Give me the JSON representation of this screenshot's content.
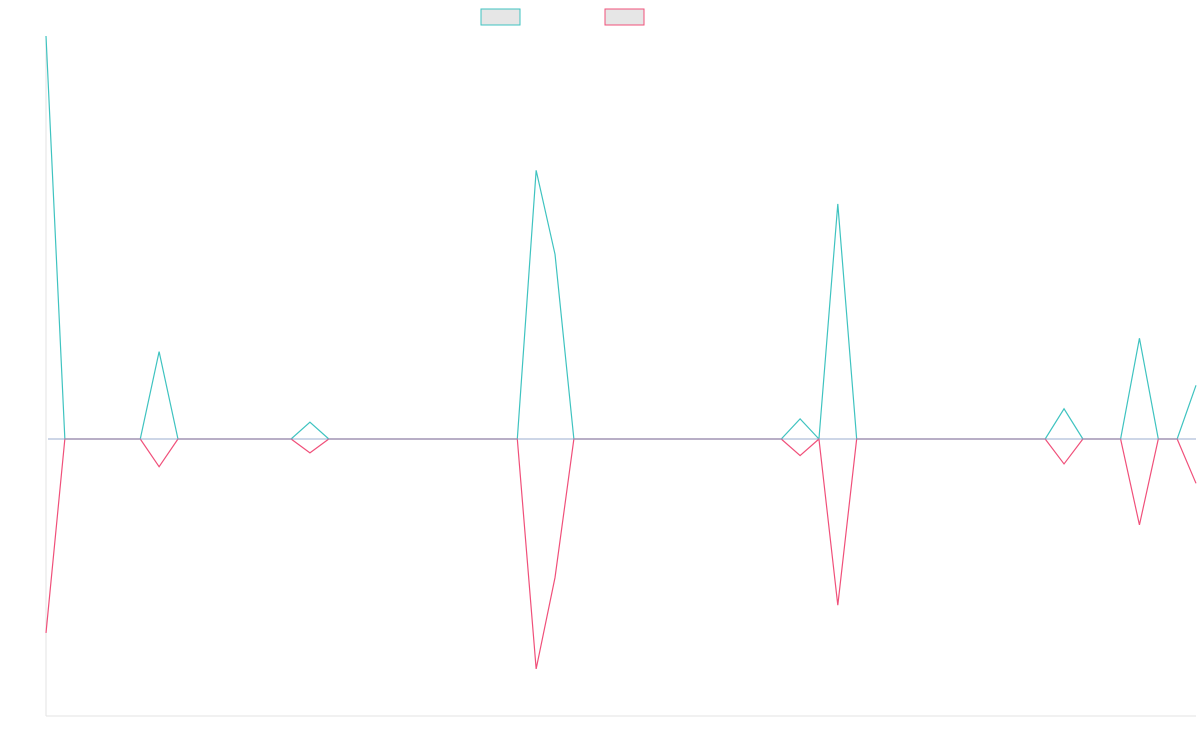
{
  "chart_data": {
    "type": "line",
    "title": "",
    "xlabel": "",
    "ylabel": "",
    "legend_position": "top-center",
    "grid": false,
    "colors": {
      "series_a": "#3fc3c0",
      "series_b": "#f0507a",
      "baseline": "#8a9fc7",
      "legend_fill": "#e6e6e6"
    },
    "x_points": 62,
    "ylim": [
      -10,
      12
    ],
    "series": [
      {
        "key": "series_a",
        "values": [
          12,
          0,
          0,
          0,
          0,
          0,
          2.6,
          0,
          0,
          0,
          0,
          0,
          0,
          0,
          0.5,
          0,
          0,
          0,
          0,
          0,
          0,
          0,
          0,
          0,
          0,
          0,
          8.0,
          5.5,
          0,
          0,
          0,
          0,
          0,
          0,
          0,
          0,
          0,
          0,
          0,
          0,
          0.6,
          0,
          7.0,
          0,
          0,
          0,
          0,
          0,
          0,
          0,
          0,
          0,
          0,
          0,
          0.9,
          0,
          0,
          0,
          3.0,
          0,
          0,
          1.6
        ]
      },
      {
        "key": "series_b",
        "values": [
          -7,
          0,
          0,
          0,
          0,
          0,
          -1.0,
          0,
          0,
          0,
          0,
          0,
          0,
          0,
          -0.5,
          0,
          0,
          0,
          0,
          0,
          0,
          0,
          0,
          0,
          0,
          0,
          -8.3,
          -5.0,
          0,
          0,
          0,
          0,
          0,
          0,
          0,
          0,
          0,
          0,
          0,
          0,
          -0.6,
          0,
          -6.0,
          0,
          0,
          0,
          0,
          0,
          0,
          0,
          0,
          0,
          0,
          0,
          -0.9,
          0,
          0,
          0,
          -3.1,
          0,
          0,
          -1.6
        ]
      }
    ]
  }
}
